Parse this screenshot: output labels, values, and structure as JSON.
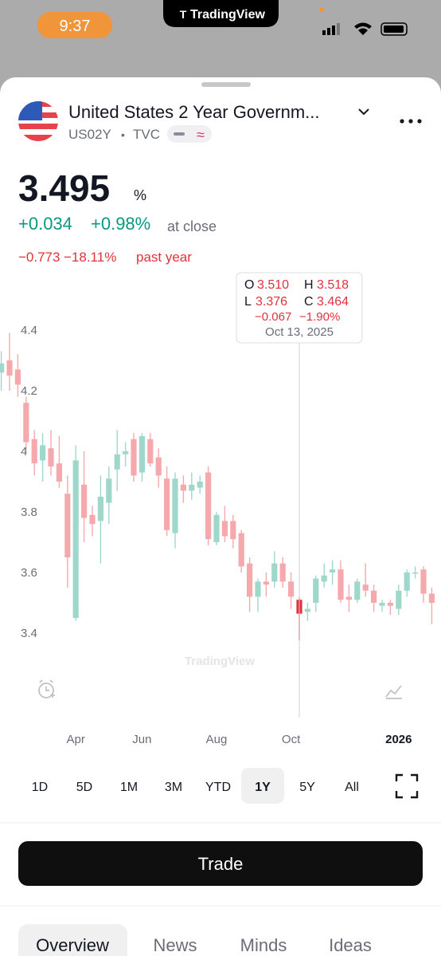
{
  "status_bar": {
    "time": "9:37",
    "app": "TradingView"
  },
  "header": {
    "title": "United States 2 Year Governm...",
    "symbol": "US02Y",
    "separator": "•",
    "exchange": "TVC"
  },
  "quote": {
    "price": "3.495",
    "unit": "%",
    "change": "+0.034",
    "change_pct": "+0.98%",
    "status": "at close",
    "year_change": "−0.773",
    "year_change_pct": "−18.11%",
    "year_label": "past year"
  },
  "tooltip": {
    "o_label": "O",
    "o": "3.510",
    "h_label": "H",
    "h": "3.518",
    "l_label": "L",
    "l": "3.376",
    "c_label": "C",
    "c": "3.464",
    "change": "−0.067",
    "change_pct": "−1.90%",
    "date": "Oct 13, 2025"
  },
  "chart_data": {
    "type": "candlestick",
    "categories": [
      null,
      null,
      null,
      null,
      null,
      null,
      null,
      null,
      null,
      "Apr",
      null,
      null,
      null,
      null,
      null,
      null,
      null,
      "Jun",
      null,
      null,
      null,
      null,
      null,
      null,
      null,
      null,
      "Aug",
      null,
      null,
      null,
      null,
      null,
      null,
      null,
      null,
      "Oct",
      null,
      null,
      null,
      null,
      null,
      null,
      null,
      null,
      null,
      null,
      null,
      null,
      "2026",
      null,
      null,
      null,
      null
    ],
    "open": [
      4.26,
      4.3,
      4.27,
      4.16,
      4.04,
      3.97,
      4.01,
      3.96,
      3.86,
      3.45,
      3.89,
      3.79,
      3.77,
      3.83,
      3.94,
      3.99,
      4.04,
      3.93,
      4.04,
      3.98,
      3.91,
      3.73,
      3.89,
      3.87,
      3.88,
      3.93,
      3.7,
      3.77,
      3.77,
      3.73,
      3.63,
      3.52,
      3.57,
      3.57,
      3.63,
      3.57,
      3.51,
      3.47,
      3.5,
      3.57,
      3.6,
      3.61,
      3.52,
      3.51,
      3.56,
      3.54,
      3.49,
      3.5,
      3.48,
      3.54,
      3.6,
      3.61,
      3.53
    ],
    "high": [
      4.33,
      4.39,
      4.32,
      4.18,
      4.07,
      4.06,
      4.07,
      4.05,
      3.92,
      4.02,
      4.0,
      3.82,
      3.92,
      3.95,
      4.07,
      4.03,
      4.06,
      4.06,
      4.06,
      4.01,
      3.95,
      3.93,
      3.92,
      3.93,
      3.92,
      3.95,
      3.8,
      3.82,
      3.79,
      3.74,
      3.65,
      3.58,
      3.6,
      3.67,
      3.65,
      3.6,
      3.518,
      3.5,
      3.59,
      3.63,
      3.64,
      3.64,
      3.56,
      3.58,
      3.63,
      3.56,
      3.51,
      3.51,
      3.56,
      3.61,
      3.62,
      3.62,
      3.55
    ],
    "low": [
      4.2,
      4.2,
      4.18,
      4.0,
      3.92,
      3.9,
      3.92,
      3.88,
      3.55,
      3.44,
      3.7,
      3.72,
      3.63,
      3.76,
      3.87,
      3.95,
      3.9,
      3.9,
      3.95,
      3.88,
      3.72,
      3.68,
      3.83,
      3.84,
      3.86,
      3.69,
      3.69,
      3.7,
      3.68,
      3.6,
      3.47,
      3.47,
      3.52,
      3.55,
      3.55,
      3.48,
      3.376,
      3.44,
      3.47,
      3.55,
      3.56,
      3.5,
      3.47,
      3.5,
      3.52,
      3.47,
      3.47,
      3.46,
      3.46,
      3.52,
      3.58,
      3.5,
      3.43
    ],
    "close": [
      4.29,
      4.25,
      4.22,
      4.03,
      3.96,
      4.02,
      3.95,
      3.9,
      3.65,
      3.97,
      3.78,
      3.76,
      3.85,
      3.91,
      3.99,
      4.0,
      3.92,
      4.05,
      3.96,
      3.92,
      3.74,
      3.91,
      3.87,
      3.89,
      3.9,
      3.71,
      3.79,
      3.72,
      3.71,
      3.62,
      3.52,
      3.57,
      3.56,
      3.63,
      3.57,
      3.52,
      3.464,
      3.48,
      3.58,
      3.59,
      3.61,
      3.51,
      3.51,
      3.57,
      3.54,
      3.5,
      3.5,
      3.49,
      3.54,
      3.6,
      3.6,
      3.53,
      3.5
    ],
    "up_color": "#9fd8cb",
    "down_color": "#f6a9ad",
    "highlight_color": "#e0323c",
    "highlight_index": 36,
    "ylim": [
      3.3,
      4.6
    ],
    "yticks": [
      4.4,
      4.2,
      4,
      3.8,
      3.6,
      3.4
    ],
    "watermark": "TradingView"
  },
  "ranges": [
    "1D",
    "5D",
    "1M",
    "3M",
    "YTD",
    "1Y",
    "5Y",
    "All"
  ],
  "trade_button": "Trade",
  "tabs": [
    "Overview",
    "News",
    "Minds",
    "Ideas"
  ]
}
